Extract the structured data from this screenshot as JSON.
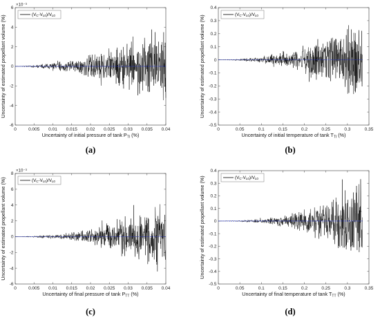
{
  "chart_data": [
    {
      "type": "line",
      "panel_label": "(a)",
      "xlabel": "Uncertainty of initial pressure of tank P",
      "xlabel_sub": "TI",
      "xlabel_suffix": " (%)",
      "ylabel": "Uncertainty of estimated propellant volume  (%)",
      "exponent": "×10⁻³",
      "xlim": [
        0,
        0.04
      ],
      "ylim": [
        -6,
        6
      ],
      "xticks": [
        "0",
        "0.005",
        "0.01",
        "0.015",
        "0.02",
        "0.025",
        "0.03",
        "0.035",
        "0.04"
      ],
      "yticks": [
        "-6",
        "-4",
        "-2",
        "0",
        "2",
        "4",
        "6"
      ],
      "legend": {
        "position": "top-left",
        "entry": "(V",
        "sub1": "C",
        "mid": "-V",
        "sub2": "L0",
        "tail": ")/V",
        "sub3": "L0"
      },
      "x_end": 0.04,
      "envelope": [
        [
          0,
          0
        ],
        [
          0.005,
          0.15
        ],
        [
          0.01,
          0.4
        ],
        [
          0.015,
          0.7
        ],
        [
          0.02,
          1.2
        ],
        [
          0.025,
          2.0
        ],
        [
          0.03,
          2.8
        ],
        [
          0.035,
          3.8
        ],
        [
          0.04,
          4.5
        ]
      ],
      "mean_line": 0,
      "series_color": "#000000",
      "mean_color": "#2233cc"
    },
    {
      "type": "line",
      "panel_label": "(b)",
      "xlabel": "Uncertainty of initial temperature of tank T",
      "xlabel_sub": "TI",
      "xlabel_suffix": " (%)",
      "ylabel": "Uncertainty of estimated propellant volume  (%)",
      "exponent": "",
      "xlim": [
        0,
        0.35
      ],
      "ylim": [
        -0.5,
        0.4
      ],
      "xticks": [
        "0",
        "0.05",
        "0.1",
        "0.15",
        "0.2",
        "0.25",
        "0.3",
        "0.35"
      ],
      "yticks": [
        "-0.5",
        "-0.4",
        "-0.3",
        "-0.2",
        "-0.1",
        "0",
        "0.1",
        "0.2",
        "0.3",
        "0.4"
      ],
      "legend": {
        "position": "top-left",
        "entry": "(V",
        "sub1": "C",
        "mid": "-V",
        "sub2": "L0",
        "tail": ")/V",
        "sub3": "L0"
      },
      "x_end": 0.335,
      "envelope": [
        [
          0,
          0
        ],
        [
          0.05,
          0.008
        ],
        [
          0.1,
          0.025
        ],
        [
          0.15,
          0.06
        ],
        [
          0.2,
          0.12
        ],
        [
          0.25,
          0.2
        ],
        [
          0.3,
          0.28
        ],
        [
          0.335,
          0.34
        ]
      ],
      "mean_line": 0,
      "series_color": "#000000",
      "mean_color": "#2233cc"
    },
    {
      "type": "line",
      "panel_label": "(c)",
      "xlabel": "Uncertainty of final pressure of tank P",
      "xlabel_sub": "TT",
      "xlabel_suffix": " (%)",
      "ylabel": "Uncertainty of estimated propellant volume  (%)",
      "exponent": "×10⁻³",
      "xlim": [
        0,
        0.04
      ],
      "ylim": [
        -6,
        8
      ],
      "xticks": [
        "0",
        "0.005",
        "0.01",
        "0.015",
        "0.02",
        "0.025",
        "0.03",
        "0.035",
        "0.04"
      ],
      "yticks": [
        "-6",
        "-4",
        "-2",
        "0",
        "2",
        "4",
        "6",
        "8"
      ],
      "legend": {
        "position": "top-left",
        "entry": "(V",
        "sub1": "C",
        "mid": "-V",
        "sub2": "L0",
        "tail": ")/V",
        "sub3": "L0"
      },
      "x_end": 0.04,
      "envelope": [
        [
          0,
          0
        ],
        [
          0.005,
          0.1
        ],
        [
          0.01,
          0.3
        ],
        [
          0.015,
          0.6
        ],
        [
          0.02,
          1.1
        ],
        [
          0.025,
          1.9
        ],
        [
          0.03,
          2.8
        ],
        [
          0.035,
          4.0
        ],
        [
          0.04,
          4.8
        ]
      ],
      "mean_line": 0,
      "series_color": "#000000",
      "mean_color": "#2233cc"
    },
    {
      "type": "line",
      "panel_label": "(d)",
      "xlabel": "Uncertainty of final temperature of tank T",
      "xlabel_sub": "TT",
      "xlabel_suffix": " (%)",
      "ylabel": "Uncertainty of estimated propellant volume  (%)",
      "exponent": "",
      "xlim": [
        0,
        0.35
      ],
      "ylim": [
        -0.5,
        0.4
      ],
      "xticks": [
        "0",
        "0.05",
        "0.1",
        "0.15",
        "0.2",
        "0.25",
        "0.3",
        "0.35"
      ],
      "yticks": [
        "-0.5",
        "-0.4",
        "-0.3",
        "-0.2",
        "-0.1",
        "0",
        "0.1",
        "0.2",
        "0.3",
        "0.4"
      ],
      "legend": {
        "position": "top-left",
        "entry": "(V",
        "sub1": "C",
        "mid": "-V",
        "sub2": "L0",
        "tail": ")/V",
        "sub3": "L0"
      },
      "x_end": 0.335,
      "envelope": [
        [
          0,
          0
        ],
        [
          0.05,
          0.006
        ],
        [
          0.1,
          0.02
        ],
        [
          0.15,
          0.05
        ],
        [
          0.2,
          0.1
        ],
        [
          0.25,
          0.18
        ],
        [
          0.3,
          0.27
        ],
        [
          0.335,
          0.35
        ]
      ],
      "mean_line": 0,
      "series_color": "#000000",
      "mean_color": "#2233cc"
    }
  ]
}
